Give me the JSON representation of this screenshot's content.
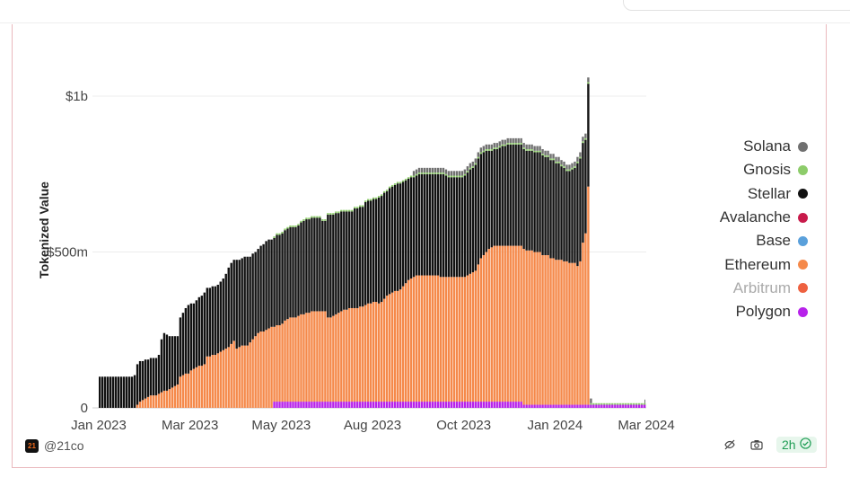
{
  "brand": {
    "handle": "@21co",
    "logo_text": "21"
  },
  "status": {
    "refresh_label": "2h",
    "check_icon": "check-circle-icon"
  },
  "icons": [
    "search-bar",
    "eye-off-icon",
    "camera-icon",
    "check-circle-icon"
  ],
  "chart_data": {
    "type": "bar",
    "stacked": true,
    "ylabel": "Tokenized Value",
    "xlabel": "",
    "y_ticks": [
      {
        "value": 0,
        "label": "0"
      },
      {
        "value": 500000000,
        "label": "$500m"
      },
      {
        "value": 1000000000,
        "label": "$1b"
      }
    ],
    "ylim": [
      0,
      1150000000
    ],
    "x_ticks": [
      "Jan 2023",
      "Mar 2023",
      "May 2023",
      "Aug 2023",
      "Oct 2023",
      "Jan 2024",
      "Mar 2024"
    ],
    "grid": true,
    "legend_position": "right",
    "legend": [
      {
        "name": "Solana",
        "color": "#707070",
        "dimmed": false
      },
      {
        "name": "Gnosis",
        "color": "#8dcc6a",
        "dimmed": false
      },
      {
        "name": "Stellar",
        "color": "#111111",
        "dimmed": false
      },
      {
        "name": "Avalanche",
        "color": "#c81a4b",
        "dimmed": false
      },
      {
        "name": "Base",
        "color": "#5aa0db",
        "dimmed": false
      },
      {
        "name": "Ethereum",
        "color": "#f5894a",
        "dimmed": false
      },
      {
        "name": "Arbitrum",
        "color": "#ee6140",
        "dimmed": true
      },
      {
        "name": "Polygon",
        "color": "#b722ea",
        "dimmed": false
      }
    ],
    "x_date_range": [
      "Jan 2023",
      "Mar 2024"
    ],
    "series": [
      {
        "name": "Polygon",
        "values": [
          0,
          0,
          0,
          0,
          0,
          0,
          0,
          0,
          0,
          0,
          0,
          0,
          0,
          0,
          0,
          0,
          0,
          0,
          0,
          0,
          0,
          0,
          0,
          0,
          0,
          0,
          0,
          0,
          0,
          0,
          0,
          0,
          0,
          0,
          0,
          0,
          0,
          0,
          0,
          0,
          0,
          0,
          0,
          0,
          0,
          0,
          0,
          0,
          0,
          0,
          0,
          0,
          0,
          0,
          0,
          0,
          0,
          0,
          0,
          0,
          0,
          0,
          0,
          0,
          0,
          20000000,
          20000000,
          20000000,
          20000000,
          20000000,
          20000000,
          20000000,
          20000000,
          20000000,
          20000000,
          20000000,
          20000000,
          20000000,
          20000000,
          20000000,
          20000000,
          20000000,
          20000000,
          20000000,
          20000000,
          20000000,
          20000000,
          20000000,
          20000000,
          20000000,
          20000000,
          20000000,
          20000000,
          20000000,
          20000000,
          20000000,
          20000000,
          20000000,
          20000000,
          20000000,
          20000000,
          20000000,
          20000000,
          20000000,
          20000000,
          20000000,
          20000000,
          20000000,
          20000000,
          20000000,
          20000000,
          20000000,
          20000000,
          20000000,
          20000000,
          20000000,
          20000000,
          20000000,
          20000000,
          20000000,
          20000000,
          20000000,
          20000000,
          20000000,
          20000000,
          20000000,
          20000000,
          20000000,
          20000000,
          20000000,
          20000000,
          20000000,
          20000000,
          20000000,
          20000000,
          20000000,
          20000000,
          20000000,
          20000000,
          20000000,
          20000000,
          20000000,
          20000000,
          20000000,
          20000000,
          20000000,
          20000000,
          20000000,
          20000000,
          20000000,
          20000000,
          20000000,
          20000000,
          20000000,
          20000000,
          20000000,
          20000000,
          20000000,
          10000000,
          10000000,
          10000000,
          10000000,
          10000000,
          10000000,
          10000000,
          10000000,
          10000000,
          10000000,
          10000000,
          10000000,
          10000000,
          10000000,
          10000000,
          10000000,
          10000000,
          10000000,
          10000000,
          10000000,
          10000000,
          10000000,
          10000000,
          10000000,
          10000000,
          10000000,
          10000000,
          10000000,
          10000000,
          10000000,
          10000000,
          10000000,
          10000000,
          10000000,
          10000000,
          10000000,
          10000000,
          10000000,
          10000000,
          10000000,
          10000000,
          10000000,
          10000000,
          10000000,
          10000000,
          10000000
        ]
      },
      {
        "name": "Ethereum",
        "values": [
          0,
          0,
          0,
          0,
          0,
          0,
          0,
          0,
          0,
          0,
          0,
          0,
          0,
          0,
          10000000,
          20000000,
          25000000,
          30000000,
          35000000,
          40000000,
          40000000,
          40000000,
          45000000,
          50000000,
          55000000,
          55000000,
          60000000,
          65000000,
          70000000,
          75000000,
          100000000,
          105000000,
          110000000,
          110000000,
          120000000,
          125000000,
          130000000,
          135000000,
          135000000,
          140000000,
          165000000,
          165000000,
          170000000,
          170000000,
          175000000,
          180000000,
          185000000,
          190000000,
          195000000,
          205000000,
          215000000,
          190000000,
          195000000,
          200000000,
          200000000,
          200000000,
          210000000,
          220000000,
          230000000,
          240000000,
          245000000,
          245000000,
          250000000,
          255000000,
          260000000,
          240000000,
          245000000,
          245000000,
          250000000,
          260000000,
          265000000,
          270000000,
          270000000,
          270000000,
          275000000,
          280000000,
          280000000,
          285000000,
          285000000,
          290000000,
          290000000,
          290000000,
          290000000,
          290000000,
          290000000,
          270000000,
          270000000,
          275000000,
          280000000,
          285000000,
          290000000,
          295000000,
          295000000,
          300000000,
          300000000,
          300000000,
          300000000,
          305000000,
          305000000,
          310000000,
          315000000,
          315000000,
          320000000,
          320000000,
          315000000,
          320000000,
          330000000,
          340000000,
          345000000,
          350000000,
          355000000,
          355000000,
          360000000,
          370000000,
          380000000,
          390000000,
          395000000,
          400000000,
          405000000,
          405000000,
          405000000,
          405000000,
          405000000,
          405000000,
          405000000,
          405000000,
          405000000,
          400000000,
          400000000,
          400000000,
          400000000,
          400000000,
          400000000,
          400000000,
          400000000,
          400000000,
          400000000,
          405000000,
          410000000,
          415000000,
          420000000,
          440000000,
          460000000,
          470000000,
          480000000,
          490000000,
          495000000,
          500000000,
          500000000,
          500000000,
          500000000,
          500000000,
          500000000,
          500000000,
          500000000,
          500000000,
          500000000,
          500000000,
          500000000,
          495000000,
          495000000,
          495000000,
          490000000,
          490000000,
          490000000,
          480000000,
          480000000,
          480000000,
          470000000,
          470000000,
          465000000,
          465000000,
          465000000,
          460000000,
          460000000,
          455000000,
          455000000,
          455000000,
          445000000,
          460000000,
          520000000,
          550000000,
          700000000
        ]
      },
      {
        "name": "Stellar",
        "values": [
          100000000,
          100000000,
          100000000,
          100000000,
          100000000,
          100000000,
          100000000,
          100000000,
          100000000,
          100000000,
          100000000,
          100000000,
          100000000,
          105000000,
          130000000,
          130000000,
          125000000,
          125000000,
          120000000,
          120000000,
          120000000,
          120000000,
          125000000,
          170000000,
          185000000,
          180000000,
          170000000,
          165000000,
          160000000,
          155000000,
          190000000,
          200000000,
          210000000,
          220000000,
          215000000,
          210000000,
          215000000,
          220000000,
          225000000,
          230000000,
          220000000,
          220000000,
          220000000,
          220000000,
          220000000,
          225000000,
          230000000,
          240000000,
          255000000,
          260000000,
          260000000,
          285000000,
          280000000,
          280000000,
          285000000,
          285000000,
          275000000,
          275000000,
          270000000,
          270000000,
          275000000,
          280000000,
          285000000,
          285000000,
          280000000,
          285000000,
          290000000,
          290000000,
          290000000,
          290000000,
          290000000,
          290000000,
          290000000,
          290000000,
          290000000,
          295000000,
          300000000,
          300000000,
          300000000,
          300000000,
          300000000,
          300000000,
          300000000,
          290000000,
          290000000,
          330000000,
          330000000,
          325000000,
          325000000,
          320000000,
          320000000,
          315000000,
          315000000,
          310000000,
          310000000,
          320000000,
          320000000,
          320000000,
          320000000,
          330000000,
          330000000,
          330000000,
          330000000,
          330000000,
          340000000,
          340000000,
          340000000,
          335000000,
          340000000,
          340000000,
          340000000,
          345000000,
          340000000,
          335000000,
          330000000,
          325000000,
          325000000,
          320000000,
          320000000,
          325000000,
          325000000,
          325000000,
          325000000,
          325000000,
          325000000,
          325000000,
          325000000,
          330000000,
          330000000,
          325000000,
          320000000,
          320000000,
          320000000,
          320000000,
          320000000,
          320000000,
          325000000,
          330000000,
          335000000,
          335000000,
          340000000,
          340000000,
          335000000,
          330000000,
          325000000,
          315000000,
          310000000,
          310000000,
          310000000,
          315000000,
          320000000,
          320000000,
          325000000,
          325000000,
          325000000,
          325000000,
          325000000,
          325000000,
          320000000,
          320000000,
          320000000,
          320000000,
          320000000,
          320000000,
          320000000,
          320000000,
          315000000,
          315000000,
          315000000,
          315000000,
          310000000,
          310000000,
          300000000,
          300000000,
          290000000,
          295000000,
          300000000,
          305000000,
          330000000,
          330000000,
          320000000,
          300000000,
          330000000
        ]
      },
      {
        "name": "Gnosis",
        "values": [
          0,
          0,
          0,
          0,
          0,
          0,
          0,
          0,
          0,
          0,
          0,
          0,
          0,
          0,
          0,
          0,
          0,
          0,
          0,
          0,
          0,
          0,
          0,
          0,
          0,
          0,
          0,
          0,
          0,
          0,
          0,
          0,
          0,
          0,
          0,
          0,
          0,
          0,
          0,
          0,
          0,
          0,
          0,
          0,
          0,
          0,
          0,
          0,
          0,
          0,
          0,
          0,
          0,
          0,
          0,
          0,
          0,
          0,
          0,
          0,
          0,
          0,
          0,
          0,
          0,
          5000000,
          5000000,
          5000000,
          5000000,
          5000000,
          5000000,
          5000000,
          5000000,
          5000000,
          5000000,
          5000000,
          5000000,
          5000000,
          5000000,
          5000000,
          5000000,
          5000000,
          5000000,
          5000000,
          5000000,
          5000000,
          5000000,
          5000000,
          5000000,
          5000000,
          5000000,
          5000000,
          5000000,
          5000000,
          5000000,
          5000000,
          5000000,
          5000000,
          5000000,
          5000000,
          5000000,
          5000000,
          5000000,
          5000000,
          5000000,
          5000000,
          5000000,
          5000000,
          5000000,
          5000000,
          5000000,
          5000000,
          5000000,
          5000000,
          5000000,
          5000000,
          5000000,
          5000000,
          5000000,
          5000000,
          5000000,
          5000000,
          5000000,
          5000000,
          5000000,
          5000000,
          5000000,
          5000000,
          5000000,
          5000000,
          5000000,
          5000000,
          5000000,
          5000000,
          5000000,
          5000000,
          5000000,
          5000000,
          5000000,
          5000000,
          5000000,
          5000000,
          5000000,
          5000000,
          5000000,
          5000000,
          5000000,
          5000000,
          5000000,
          5000000,
          5000000,
          5000000,
          5000000,
          5000000,
          5000000,
          5000000,
          5000000,
          5000000,
          5000000,
          5000000,
          5000000,
          5000000,
          5000000,
          5000000,
          5000000,
          5000000,
          5000000,
          5000000,
          5000000,
          5000000,
          5000000,
          5000000,
          5000000,
          5000000,
          5000000,
          5000000,
          5000000,
          5000000,
          5000000,
          5000000,
          5000000,
          5000000,
          5000000,
          5000000,
          5000000,
          5000000,
          5000000,
          5000000,
          5000000,
          5000000,
          5000000,
          5000000,
          5000000,
          5000000,
          5000000,
          5000000,
          5000000,
          5000000,
          5000000,
          5000000,
          5000000,
          5000000,
          5000000,
          5000000
        ]
      },
      {
        "name": "Solana",
        "values": [
          0,
          0,
          0,
          0,
          0,
          0,
          0,
          0,
          0,
          0,
          0,
          0,
          0,
          0,
          0,
          0,
          0,
          0,
          0,
          0,
          0,
          0,
          0,
          0,
          0,
          0,
          0,
          0,
          0,
          0,
          0,
          0,
          0,
          0,
          0,
          0,
          0,
          0,
          0,
          0,
          0,
          0,
          0,
          0,
          0,
          0,
          0,
          0,
          0,
          0,
          0,
          0,
          0,
          0,
          0,
          0,
          0,
          0,
          0,
          0,
          0,
          0,
          0,
          0,
          0,
          0,
          0,
          0,
          0,
          0,
          0,
          0,
          0,
          0,
          0,
          0,
          0,
          0,
          0,
          0,
          0,
          0,
          0,
          0,
          0,
          0,
          0,
          0,
          0,
          0,
          0,
          0,
          0,
          0,
          0,
          0,
          0,
          0,
          0,
          0,
          0,
          0,
          0,
          0,
          0,
          0,
          0,
          0,
          0,
          0,
          0,
          0,
          0,
          0,
          0,
          0,
          0,
          15000000,
          15000000,
          15000000,
          15000000,
          15000000,
          15000000,
          15000000,
          15000000,
          15000000,
          15000000,
          15000000,
          15000000,
          15000000,
          15000000,
          15000000,
          15000000,
          15000000,
          15000000,
          15000000,
          15000000,
          15000000,
          15000000,
          15000000,
          15000000,
          15000000,
          15000000,
          15000000,
          15000000,
          15000000,
          15000000,
          15000000,
          15000000,
          15000000,
          15000000,
          15000000,
          15000000,
          15000000,
          15000000,
          15000000,
          15000000,
          15000000,
          15000000,
          15000000,
          15000000,
          15000000,
          15000000,
          15000000,
          15000000,
          15000000,
          15000000,
          15000000,
          15000000,
          15000000,
          15000000,
          15000000,
          15000000,
          15000000,
          15000000,
          15000000,
          15000000,
          15000000,
          15000000,
          15000000,
          15000000,
          15000000,
          15000000,
          15000000
        ]
      }
    ]
  }
}
